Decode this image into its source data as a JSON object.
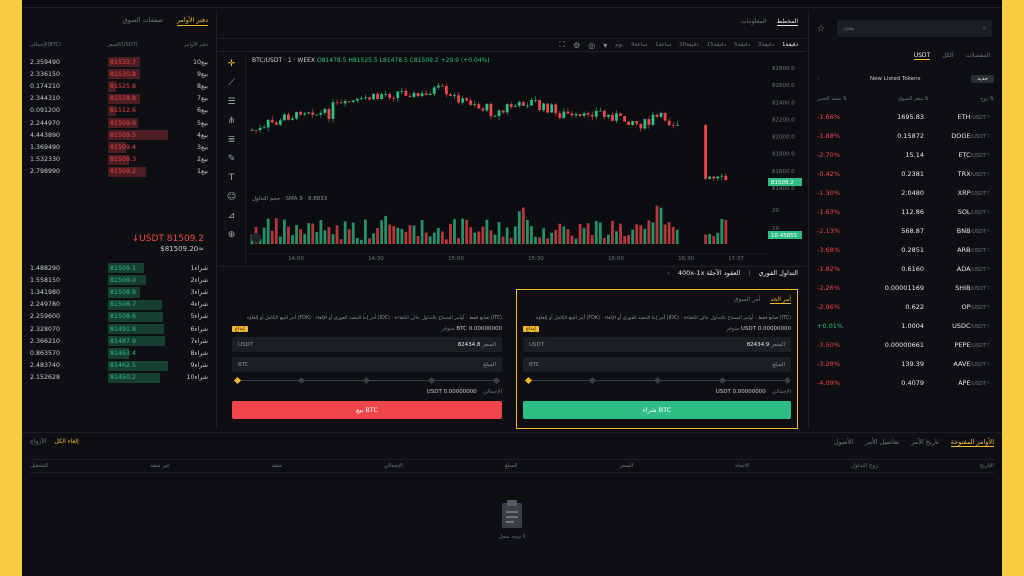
{
  "orderbook": {
    "tabs": [
      "دفتر الأوامر",
      "صفقات السوق"
    ],
    "headers": [
      "الإجمالي(BTC)",
      "السعر(USDT)",
      "دفتر الأوامر"
    ],
    "asks": [
      {
        "total": "2.359490",
        "price": "81533.7",
        "label": "بيع10"
      },
      {
        "total": "2.336150",
        "price": "81530.8",
        "label": "بيع9"
      },
      {
        "total": "0.174210",
        "price": "81525.8",
        "label": "بيع8"
      },
      {
        "total": "2.344310",
        "price": "81518.8",
        "label": "بيع7"
      },
      {
        "total": "0.091200",
        "price": "81512.6",
        "label": "بيع6"
      },
      {
        "total": "2.244970",
        "price": "81509.6",
        "label": "بيع5"
      },
      {
        "total": "4.443890",
        "price": "81509.5",
        "label": "بيع4"
      },
      {
        "total": "1.369490",
        "price": "81509.4",
        "label": "بيع3"
      },
      {
        "total": "1.532330",
        "price": "81509.3",
        "label": "بيع2"
      },
      {
        "total": "2.798990",
        "price": "81509.2",
        "label": "بيع1"
      }
    ],
    "last_price": "↓USDT 81509.2",
    "last_price_fiat": "$81509.20≈",
    "bids": [
      {
        "total": "1.488290",
        "price": "81509.1",
        "label": "شراء1"
      },
      {
        "total": "1.558150",
        "price": "81509.0",
        "label": "شراء2"
      },
      {
        "total": "1.341980",
        "price": "81508.9",
        "label": "شراء3"
      },
      {
        "total": "2.249780",
        "price": "81508.7",
        "label": "شراء4"
      },
      {
        "total": "2.259600",
        "price": "81508.6",
        "label": "شراء5"
      },
      {
        "total": "2.328070",
        "price": "81491.8",
        "label": "شراء6"
      },
      {
        "total": "2.366210",
        "price": "81487.9",
        "label": "شراء7"
      },
      {
        "total": "0.863570",
        "price": "81463.4",
        "label": "شراء8"
      },
      {
        "total": "2.483740",
        "price": "81462.5",
        "label": "شراء9"
      },
      {
        "total": "2.152628",
        "price": "81450.2",
        "label": "شراء10"
      }
    ]
  },
  "chart": {
    "tabs": [
      "المخطط",
      "المعلومات"
    ],
    "timeframes": [
      "دقيقة1",
      "3دقيقة",
      "5دقيقة",
      "15دقيقة",
      "30دقيقة",
      "1ساعة",
      "4ساعة",
      "يوم"
    ],
    "symbol_line": "BTC/USDT · 1 · WEEX",
    "ohlc": "O81478.5 H81525.5 L81478.5 C81509.2 +29.9 (+0.04%)",
    "volume_label": "حجم التداول · SMA 9 · 8.8833",
    "last_tag": "81509.2",
    "vol_tag": "10.45855",
    "y_ticks": [
      "82800.0",
      "82600.0",
      "82400.0",
      "82200.0",
      "82000.0",
      "81800.0",
      "81600.0",
      "81400.0"
    ],
    "x_ticks": [
      "14:00",
      "14:30",
      "15:00",
      "15:30",
      "16:00",
      "16:30",
      "17:37"
    ],
    "vol_ticks": [
      "20",
      "10"
    ]
  },
  "trade": {
    "header_left": "التداول الفوري",
    "header_mid": "400x-1x العقود الآجلة",
    "buy": {
      "tabs": [
        "أمر الحد",
        "أمر السوق"
      ],
      "options": "أمر البيع الكامل أو إلغاؤه (FOK) · أمر إما التنفيذ الفوري أو الإلغاء (IOC) · صانع فقط · أوامر السماح بالتداول عالي الكفاءة (ITC)",
      "avail_label": "متوفر",
      "avail": "USDT 0.00000000",
      "badge": "إيداع",
      "price_label": "السعر",
      "price": "82434.9",
      "price_unit": "USDT",
      "amount_label": "المبلغ",
      "amount_unit": "BTC",
      "total_label": "الإجمالي",
      "total": "USDT 0.00000000",
      "button": "شراء BTC"
    },
    "sell": {
      "options": "أمر البيع الكامل أو إلغاؤه (FOK) · أمر إما التنفيذ الفوري أو الإلغاء (IOC) · صانع فقط · أوامر السماح بالتداول عالي الكفاءة (ITC)",
      "avail_label": "متوفر",
      "avail": "BTC 0.00000000",
      "badge": "إيداع",
      "price_label": "السعر",
      "price": "82434.8",
      "price_unit": "USDT",
      "amount_label": "المبلغ",
      "amount_unit": "BTC",
      "total_label": "الإجمالي",
      "total": "USDT 0.00000000",
      "button": "بيع BTC"
    }
  },
  "market": {
    "search_placeholder": "بحث",
    "tabs": [
      "USDT",
      "الكل",
      "المفضلات"
    ],
    "sub_label": "New Listed Tokens",
    "sub_chip": "جديد",
    "headers": [
      "زوج ⇅",
      "سعر السوق ⇅",
      "نسبة التغيير ⇅"
    ],
    "rows": [
      {
        "pair": "ETH",
        "quote": "/USDT",
        "price": "1695.83",
        "change": "-1.66%",
        "dir": "down"
      },
      {
        "pair": "DOGE",
        "quote": "/USDT",
        "price": "0.15872",
        "change": "-1.88%",
        "dir": "down"
      },
      {
        "pair": "ETC",
        "quote": "/USDT",
        "price": "15.14",
        "change": "-2.70%",
        "dir": "down"
      },
      {
        "pair": "TRX",
        "quote": "/USDT",
        "price": "0.2381",
        "change": "-0.42%",
        "dir": "down"
      },
      {
        "pair": "XRP",
        "quote": "/USDT",
        "price": "2.0480",
        "change": "-1.30%",
        "dir": "down"
      },
      {
        "pair": "SOL",
        "quote": "/USDT",
        "price": "112.86",
        "change": "-1.63%",
        "dir": "down"
      },
      {
        "pair": "BNB",
        "quote": "/USDT",
        "price": "568.87",
        "change": "-2.13%",
        "dir": "down"
      },
      {
        "pair": "ARB",
        "quote": "/USDT",
        "price": "0.2851",
        "change": "-3.68%",
        "dir": "down"
      },
      {
        "pair": "ADA",
        "quote": "/USDT",
        "price": "0.6160",
        "change": "-1.82%",
        "dir": "down"
      },
      {
        "pair": "SHIB",
        "quote": "/USDT",
        "price": "0.00001169",
        "change": "-2.26%",
        "dir": "down"
      },
      {
        "pair": "OP",
        "quote": "/USDT",
        "price": "0.622",
        "change": "-2.96%",
        "dir": "down"
      },
      {
        "pair": "USDC",
        "quote": "/USDT",
        "price": "1.0004",
        "change": "+0.01%",
        "dir": "up"
      },
      {
        "pair": "PEPE",
        "quote": "/USDT",
        "price": "0.00000661",
        "change": "-3.50%",
        "dir": "down"
      },
      {
        "pair": "AAVE",
        "quote": "/USDT",
        "price": "139.39",
        "change": "-3.28%",
        "dir": "down"
      },
      {
        "pair": "APE",
        "quote": "/USDT",
        "price": "0.4079",
        "change": "-4.09%",
        "dir": "down"
      }
    ]
  },
  "orders": {
    "tabs": [
      "الأوامر المفتوحة",
      "تاريخ الأمر",
      "تفاصيل الأمر",
      "الأصول"
    ],
    "left_labels": [
      "إلغاء الكل",
      "الأزواج"
    ],
    "columns": [
      "التاريخ",
      "زوج التداول",
      "الاتجاه",
      "السعر",
      "المبلغ",
      "الإجمالي",
      "منفذ",
      "غير منفذ",
      "التشغيل"
    ],
    "empty": "لا توجد سجل"
  },
  "colors": {
    "up": "#2ebd85",
    "down": "#f0454a",
    "accent": "#f3ba2f",
    "background": "#0d0f12",
    "frame": "#f7ce3f"
  }
}
